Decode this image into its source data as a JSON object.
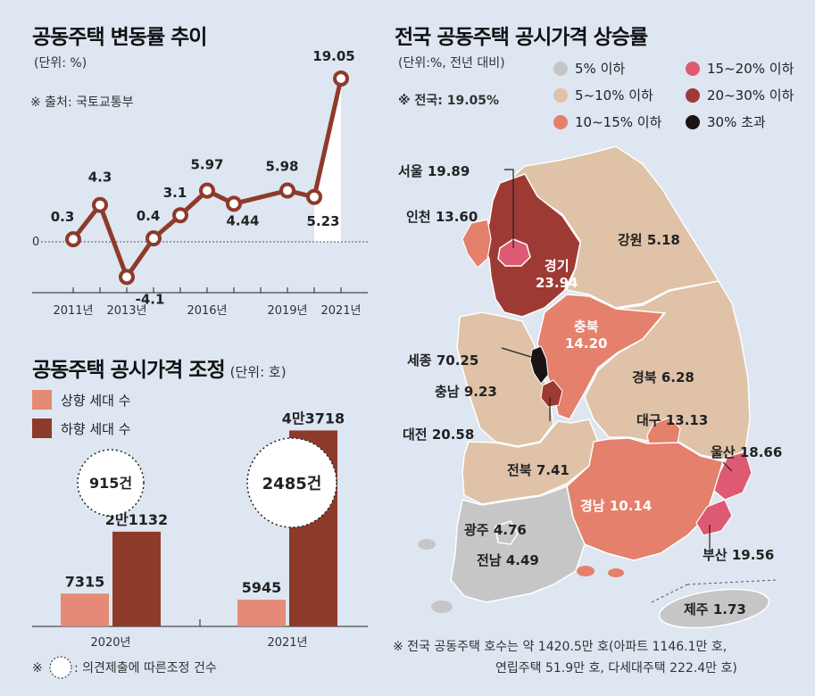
{
  "trend": {
    "title": "공동주택 변동률 추이",
    "unit": "(단위: %)",
    "source": "※ 출처: 국토교통부",
    "zero_label": "0"
  },
  "adjust": {
    "title": "공동주택 공시가격 조정",
    "unit": "(단위: 호)",
    "legend_up": "상향 세대 수",
    "legend_down": "하향 세대 수",
    "footnote_mark": "※",
    "footnote_text": ": 의견제출에 따른조정 건수",
    "bubbles": [
      "915건",
      "2485건"
    ]
  },
  "map": {
    "title": "전국 공동주택 공시가격 상승률",
    "unit": "(단위:%, 전년 대비)",
    "national": "※ 전국: 19.05%",
    "legend": [
      {
        "label": "5% 이하",
        "color": "#c6c6c6"
      },
      {
        "label": "15~20% 이하",
        "color": "#de5a72"
      },
      {
        "label": "5~10% 이하",
        "color": "#dfc2a8"
      },
      {
        "label": "20~30% 이하",
        "color": "#9e3a34"
      },
      {
        "label": "10~15% 이하",
        "color": "#e4806c"
      },
      {
        "label": "30% 초과",
        "color": "#1c1414"
      }
    ],
    "regions": {
      "seoul": "서울 19.89",
      "incheon": "인천 13.60",
      "gyeonggi_name": "경기",
      "gyeonggi_value": "23.94",
      "gangwon": "강원 5.18",
      "chungbuk_name": "충북",
      "chungbuk_value": "14.20",
      "sejong": "세종 70.25",
      "chungnam": "충남 9.23",
      "daejeon": "대전 20.58",
      "gyeongbuk": "경북 6.28",
      "daegu": "대구 13.13",
      "ulsan": "울산 18.66",
      "jeonbuk": "전북 7.41",
      "gyeongnam": "경남 10.14",
      "gwangju": "광주 4.76",
      "jeonnam": "전남 4.49",
      "busan": "부산 19.56",
      "jeju": "제주 1.73"
    },
    "footnote_line1": "※ 전국 공동주택 호수는 약 1420.5만 호(아파트 1146.1만 호,",
    "footnote_line2": "연립주택 51.9만 호, 다세대주택 222.4만 호)"
  },
  "chart_data": [
    {
      "type": "line",
      "title": "공동주택 변동률 추이",
      "ylabel": "(단위: %)",
      "x_ticks": [
        "2011년",
        "2013년",
        "2016년",
        "2019년",
        "2021년"
      ],
      "x": [
        2011,
        2012,
        2013,
        2014,
        2015,
        2016,
        2017,
        2018,
        2019,
        2020,
        2021
      ],
      "values": [
        0.3,
        4.3,
        -4.1,
        0.4,
        3.1,
        5.97,
        4.44,
        null,
        5.98,
        5.23,
        19.05
      ],
      "value_labels": [
        "0.3",
        "4.3",
        "-4.1",
        "0.4",
        "3.1",
        "5.97",
        "4.44",
        "",
        "5.98",
        "5.23",
        "19.05"
      ],
      "ylim": [
        -6,
        21
      ],
      "color": "#8e3a2a"
    },
    {
      "type": "bar",
      "title": "공동주택 공시가격 조정",
      "ylabel": "(단위: 호)",
      "categories": [
        "2020년",
        "2021년"
      ],
      "series": [
        {
          "name": "상향 세대 수",
          "values": [
            7315,
            5945
          ],
          "labels": [
            "7315",
            "5945"
          ],
          "color": "#e58a76"
        },
        {
          "name": "하향 세대 수",
          "values": [
            21132,
            43718
          ],
          "labels": [
            "2만1132",
            "4만3718"
          ],
          "color": "#8e3a2a"
        }
      ],
      "ylim": [
        0,
        45000
      ]
    }
  ]
}
